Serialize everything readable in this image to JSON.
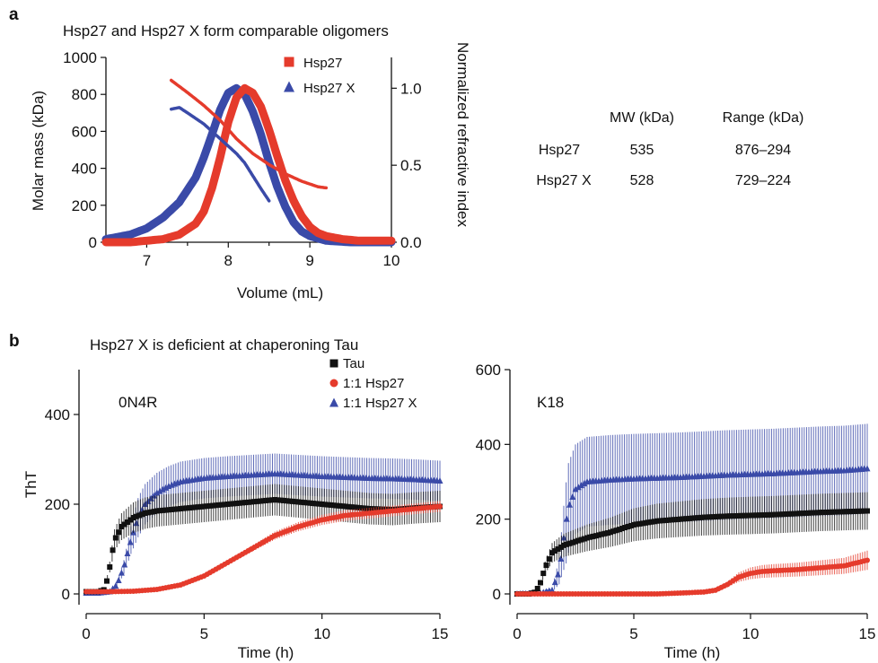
{
  "panel_a": {
    "letter": "a",
    "title": "Hsp27 and Hsp27 X form comparable oligomers",
    "table": {
      "headers": [
        "",
        "MW (kDa)",
        "Range (kDa)"
      ],
      "rows": [
        [
          "Hsp27",
          "535",
          "876–294"
        ],
        [
          "Hsp27 X",
          "528",
          "729–224"
        ]
      ]
    }
  },
  "panel_b": {
    "letter": "b",
    "title": "Hsp27 X is deficient at chaperoning Tau"
  },
  "colors": {
    "tau": "#111111",
    "hsp27": "#e53b2c",
    "hsp27x": "#3a4aa8"
  },
  "chart_data": [
    {
      "id": "sec-mals",
      "type": "line",
      "xlabel": "Volume (mL)",
      "ylabel": "Molar mass (kDa)",
      "y2label": "Normalized refractive index",
      "xlim": [
        6.5,
        10
      ],
      "ylim": [
        0,
        1000
      ],
      "y2lim": [
        0,
        1.2
      ],
      "xticks": [
        "7",
        "8",
        "9",
        "10"
      ],
      "yticks": [
        "0",
        "200",
        "400",
        "600",
        "800",
        "1000"
      ],
      "y2ticks": [
        "0.0",
        "0.5",
        "1.0"
      ],
      "legend": {
        "position": "top-right",
        "entries": [
          "Hsp27",
          "Hsp27 X"
        ]
      },
      "series": [
        {
          "name": "Hsp27",
          "kind": "refractive_index",
          "axis": "right",
          "x": [
            6.5,
            6.8,
            7.0,
            7.2,
            7.4,
            7.6,
            7.7,
            7.8,
            7.9,
            8.0,
            8.1,
            8.2,
            8.3,
            8.4,
            8.5,
            8.6,
            8.7,
            8.8,
            8.9,
            9.0,
            9.1,
            9.2,
            9.4,
            9.6,
            10.0
          ],
          "values": [
            0.0,
            0.0,
            0.01,
            0.02,
            0.05,
            0.12,
            0.2,
            0.35,
            0.55,
            0.78,
            0.94,
            1.0,
            0.97,
            0.88,
            0.73,
            0.56,
            0.4,
            0.27,
            0.17,
            0.1,
            0.06,
            0.04,
            0.02,
            0.01,
            0.01
          ]
        },
        {
          "name": "Hsp27 X",
          "kind": "refractive_index",
          "axis": "right",
          "x": [
            6.5,
            6.8,
            7.0,
            7.2,
            7.4,
            7.6,
            7.7,
            7.8,
            7.9,
            8.0,
            8.1,
            8.2,
            8.3,
            8.4,
            8.5,
            8.6,
            8.7,
            8.8,
            8.9,
            9.0,
            9.2,
            9.5,
            10.0
          ],
          "values": [
            0.02,
            0.05,
            0.09,
            0.16,
            0.26,
            0.42,
            0.55,
            0.7,
            0.86,
            0.97,
            1.0,
            0.96,
            0.85,
            0.7,
            0.52,
            0.36,
            0.23,
            0.13,
            0.07,
            0.04,
            0.01,
            0.0,
            0.0
          ]
        },
        {
          "name": "Hsp27",
          "kind": "molar_mass",
          "axis": "left",
          "x": [
            7.3,
            7.5,
            7.7,
            7.9,
            8.1,
            8.3,
            8.5,
            8.7,
            8.9,
            9.1,
            9.2
          ],
          "values": [
            876,
            810,
            740,
            660,
            560,
            480,
            420,
            370,
            330,
            300,
            294
          ]
        },
        {
          "name": "Hsp27 X",
          "kind": "molar_mass",
          "axis": "left",
          "x": [
            7.3,
            7.4,
            7.5,
            7.7,
            7.9,
            8.1,
            8.2,
            8.3,
            8.4,
            8.5
          ],
          "values": [
            720,
            729,
            700,
            640,
            560,
            480,
            430,
            360,
            290,
            224
          ]
        }
      ]
    },
    {
      "id": "tht-0n4r",
      "type": "scatter",
      "title": "0N4R",
      "xlabel": "Time (h)",
      "ylabel": "ThT",
      "xlim": [
        0,
        15
      ],
      "ylim": [
        0,
        500
      ],
      "xticks": [
        "0",
        "5",
        "10",
        "15"
      ],
      "yticks": [
        "0",
        "200",
        "400"
      ],
      "legend": {
        "position": "top-right",
        "entries": [
          "Tau",
          "1:1 Hsp27",
          "1:1 Hsp27 X"
        ]
      },
      "series": [
        {
          "name": "Tau",
          "error": 35,
          "x": [
            0,
            0.5,
            0.8,
            1.0,
            1.2,
            1.5,
            2.0,
            2.5,
            3,
            4,
            5,
            6,
            7,
            8,
            9,
            10,
            11,
            12,
            13,
            14,
            15
          ],
          "values": [
            5,
            5,
            10,
            60,
            120,
            150,
            170,
            180,
            185,
            190,
            195,
            200,
            205,
            210,
            205,
            200,
            195,
            190,
            188,
            192,
            195
          ]
        },
        {
          "name": "1:1 Hsp27",
          "error": 12,
          "x": [
            0,
            1,
            2,
            3,
            4,
            5,
            6,
            7,
            8,
            9,
            10,
            11,
            12,
            13,
            14,
            15
          ],
          "values": [
            5,
            5,
            6,
            10,
            20,
            40,
            70,
            100,
            130,
            150,
            165,
            175,
            180,
            185,
            190,
            195
          ]
        },
        {
          "name": "1:1 Hsp27 X",
          "error": 45,
          "x": [
            0,
            0.5,
            1.0,
            1.3,
            1.6,
            1.9,
            2.2,
            2.5,
            3,
            3.5,
            4,
            5,
            6,
            7,
            8,
            9,
            10,
            11,
            12,
            13,
            14,
            15
          ],
          "values": [
            2,
            2,
            5,
            20,
            60,
            120,
            170,
            200,
            225,
            240,
            250,
            258,
            262,
            265,
            268,
            265,
            262,
            260,
            258,
            257,
            255,
            252
          ]
        }
      ]
    },
    {
      "id": "tht-k18",
      "type": "scatter",
      "title": "K18",
      "xlabel": "Time (h)",
      "ylabel": "",
      "xlim": [
        0,
        15
      ],
      "ylim": [
        0,
        600
      ],
      "xticks": [
        "0",
        "5",
        "10",
        "15"
      ],
      "yticks": [
        "0",
        "200",
        "400",
        "600"
      ],
      "series": [
        {
          "name": "Tau",
          "error": 50,
          "x": [
            0,
            0.5,
            0.8,
            1.0,
            1.2,
            1.5,
            2.0,
            2.5,
            3,
            4,
            5,
            6,
            7,
            8,
            9,
            10,
            11,
            12,
            13,
            14,
            15
          ],
          "values": [
            0,
            0,
            5,
            30,
            70,
            110,
            130,
            140,
            150,
            165,
            185,
            195,
            200,
            205,
            208,
            210,
            212,
            215,
            218,
            220,
            222
          ]
        },
        {
          "name": "1:1 Hsp27",
          "error": 60,
          "x": [
            0,
            2,
            4,
            6,
            8,
            8.5,
            9,
            9.5,
            10,
            10.5,
            11,
            12,
            13,
            14,
            15
          ],
          "values": [
            0,
            0,
            0,
            0,
            5,
            10,
            25,
            45,
            55,
            60,
            62,
            65,
            70,
            75,
            90
          ]
        },
        {
          "name": "1:1 Hsp27 X",
          "error": 120,
          "x": [
            0,
            1.0,
            1.5,
            1.8,
            2.0,
            2.2,
            2.5,
            3,
            4,
            5,
            6,
            7,
            8,
            9,
            10,
            11,
            12,
            13,
            14,
            15
          ],
          "values": [
            0,
            2,
            10,
            60,
            150,
            230,
            280,
            300,
            305,
            308,
            310,
            312,
            315,
            318,
            320,
            322,
            325,
            328,
            330,
            335
          ]
        }
      ]
    }
  ]
}
